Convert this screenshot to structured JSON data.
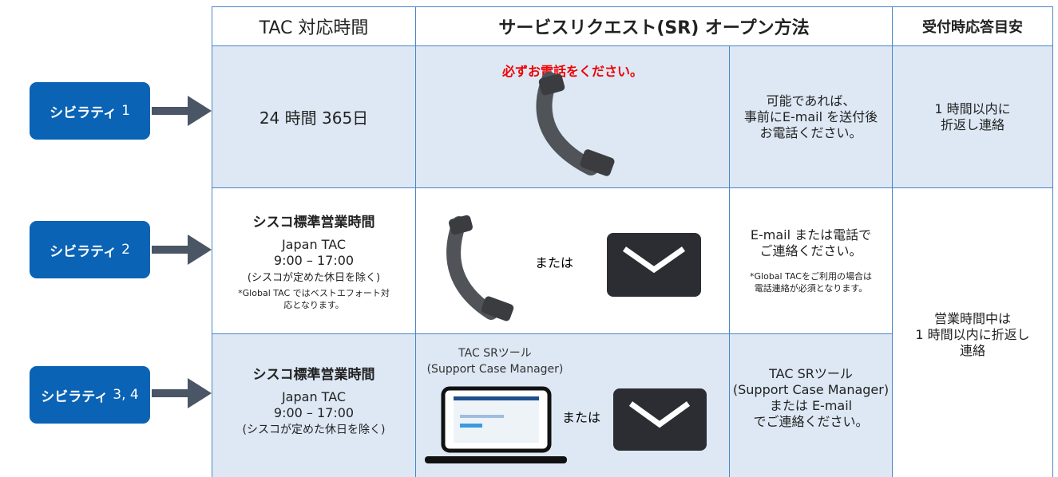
{
  "severities": [
    {
      "label": "シビラティ",
      "level": "1"
    },
    {
      "label": "シビラティ",
      "level": "2"
    },
    {
      "label": "シビラティ",
      "level": "3, 4"
    }
  ],
  "header": {
    "hours": "TAC 対応時間",
    "method": "サービスリクエスト(SR) オープン方法",
    "response": "受付時応答目安"
  },
  "rows": [
    {
      "hours": [
        "24 時間 365日"
      ],
      "method_note": "必ずお電話をください。",
      "contact": [
        "可能であれば、",
        "事前にE-mail を送付後",
        "お電話ください。"
      ],
      "response": [
        "1 時間以内に",
        "折返し連絡"
      ]
    },
    {
      "hours_title": "シスコ標準営業時間",
      "hours": [
        "Japan TAC",
        "9:00 – 17:00",
        "(シスコが定めた休日を除く)"
      ],
      "hours_note": [
        "*Global TAC ではベストエフォート対",
        "応となります。"
      ],
      "method_or": "または",
      "contact": [
        "E-mail または電話で",
        "ご連絡ください。"
      ],
      "contact_note": [
        "*Global TACをご利用の場合は",
        "電話連絡が必須となります。"
      ],
      "response": [
        "営業時間中は",
        "1 時間以内に折返し",
        "連絡"
      ]
    },
    {
      "hours_title": "シスコ標準営業時間",
      "hours": [
        "Japan TAC",
        "9:00 – 17:00",
        "(シスコが定めた休日を除く)"
      ],
      "method_tool": [
        "TAC SRツール",
        "(Support Case Manager)"
      ],
      "method_or": "または",
      "contact": [
        "TAC SRツール",
        "(Support Case Manager)",
        "または E-mail",
        "でご連絡ください。"
      ]
    }
  ]
}
